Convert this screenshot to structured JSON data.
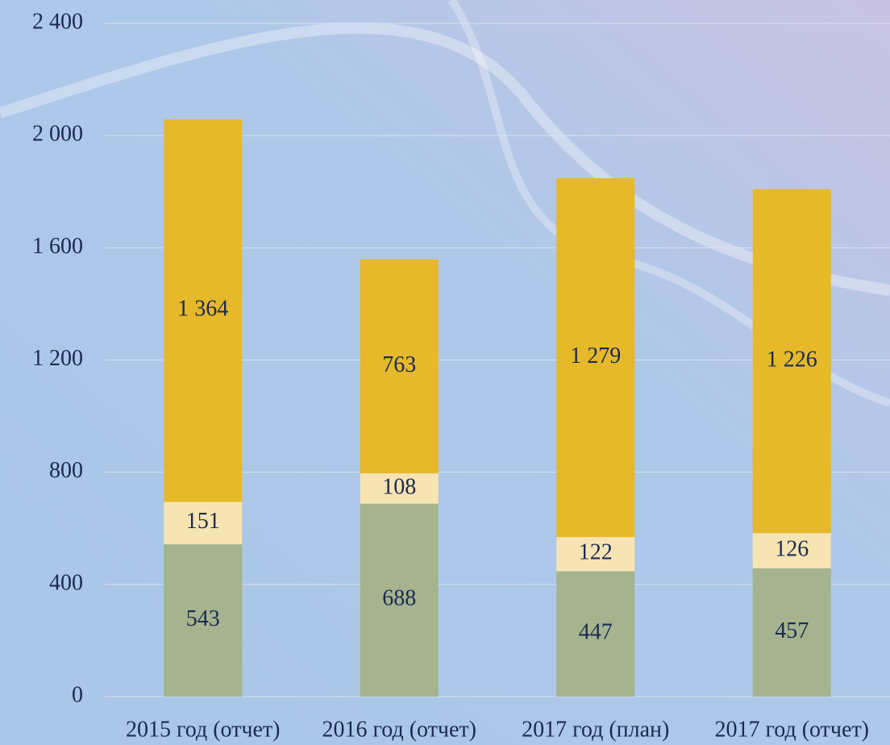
{
  "chart_data": {
    "type": "stacked_bar",
    "categories": [
      "2015 год (отчет)",
      "2016 год (отчет)",
      "2017 год (план)",
      "2017 год (отчет)"
    ],
    "series": [
      {
        "color": "#a5b48e",
        "values": [
          543,
          688,
          447,
          457
        ]
      },
      {
        "color": "#f6e4b2",
        "values": [
          151,
          108,
          122,
          126
        ]
      },
      {
        "color": "#e5b92a",
        "values": [
          1364,
          763,
          1279,
          1226
        ],
        "value_labels": [
          "1 364",
          "763",
          "1 279",
          "1 226"
        ]
      }
    ],
    "ylim": [
      0,
      2400
    ],
    "yticks": [
      0,
      400,
      800,
      {
        "value": 1200,
        "label": "1 200"
      },
      {
        "value": 1600,
        "label": "1 600"
      },
      {
        "value": 2000,
        "label": "2 000"
      },
      {
        "value": 2400,
        "label": "2 400"
      }
    ],
    "grid": true
  }
}
